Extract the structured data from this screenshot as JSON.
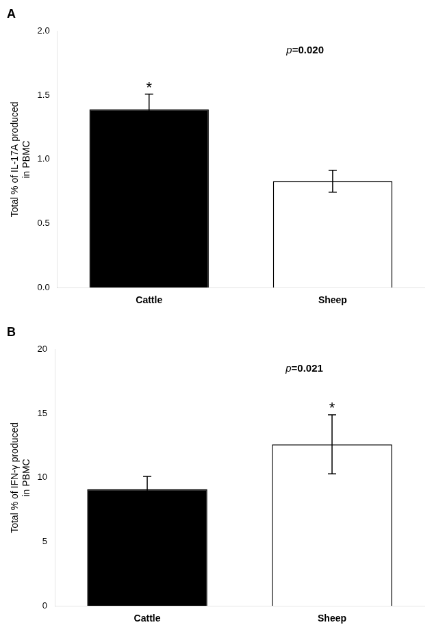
{
  "chart_data": [
    {
      "type": "bar",
      "title": "A",
      "categories": [
        "Cattle",
        "Sheep"
      ],
      "values": [
        1.39,
        0.83
      ],
      "errors": [
        0.12,
        0.085
      ],
      "colors": [
        "#000000",
        "#ffffff"
      ],
      "ylabel": "Total % of IL-17A produced\nin PBMC",
      "ylim": [
        0,
        2.0
      ],
      "yticks": [
        {
          "value": 0,
          "label": "0.0"
        },
        0.5,
        {
          "value": 1,
          "label": "1.0"
        },
        1.5,
        {
          "value": 2,
          "label": "2.0"
        }
      ],
      "grid": false,
      "annotations": [
        {
          "text": "p=0.020",
          "x": 0.85,
          "y": 1.85
        },
        {
          "text": "*",
          "x": 0,
          "y": 1.53
        }
      ]
    },
    {
      "type": "bar",
      "title": "B",
      "categories": [
        "Cattle",
        "Sheep"
      ],
      "values": [
        9.1,
        12.6
      ],
      "errors": [
        1.0,
        2.3
      ],
      "colors": [
        "#000000",
        "#ffffff"
      ],
      "ylabel": "Total % of IFN-γ produced\nin PBMC",
      "ylim": [
        0,
        20
      ],
      "yticks": [
        0,
        5,
        10,
        15,
        20
      ],
      "grid": false,
      "annotations": [
        {
          "text": "p=0.021",
          "x": 0.85,
          "y": 18.5
        },
        {
          "text": "*",
          "x": 1,
          "y": 15.1
        }
      ]
    }
  ]
}
